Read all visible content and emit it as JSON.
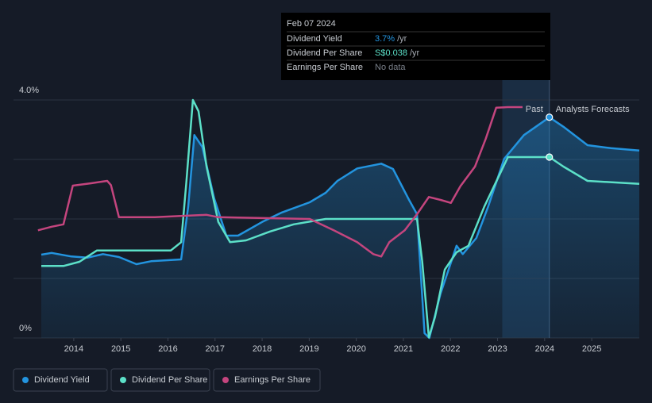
{
  "chart_data": {
    "type": "line",
    "xlim": [
      2012.72,
      2026.01
    ],
    "xticks": [
      2014,
      2015,
      2016,
      2017,
      2018,
      2019,
      2020,
      2021,
      2022,
      2023,
      2024,
      2025
    ],
    "ylim": [
      0,
      4
    ],
    "yticks": [
      {
        "value": 0,
        "label": "0%"
      },
      {
        "value": 4,
        "label": "4.0%"
      }
    ],
    "ygrid": [
      0,
      1,
      2,
      3,
      4
    ],
    "forecast_start": 2023.1,
    "cursor_x": 2024.1,
    "past_label": "Past",
    "forecast_label": "Analysts Forecasts",
    "series": [
      {
        "name": "Dividend Yield",
        "color": "#2394df",
        "area": true,
        "x": [
          2013.31,
          2013.53,
          2013.95,
          2014.29,
          2014.62,
          2014.96,
          2015.33,
          2015.64,
          2016.28,
          2016.43,
          2016.56,
          2016.73,
          2016.98,
          2017.24,
          2017.49,
          2018.0,
          2018.42,
          2019.01,
          2019.35,
          2019.6,
          2020.02,
          2020.53,
          2020.78,
          2021.12,
          2021.29,
          2021.45,
          2021.55,
          2021.79,
          2022.13,
          2022.26,
          2022.55,
          2022.8,
          2023.14,
          2023.56,
          2024.1,
          2024.4,
          2024.91,
          2025.41,
          2026.01
        ],
        "values": [
          1.4,
          1.43,
          1.37,
          1.35,
          1.41,
          1.36,
          1.24,
          1.29,
          1.32,
          2.21,
          3.41,
          3.21,
          2.35,
          1.72,
          1.72,
          1.95,
          2.11,
          2.28,
          2.44,
          2.64,
          2.85,
          2.93,
          2.84,
          2.32,
          2.08,
          0.08,
          0,
          0.75,
          1.55,
          1.41,
          1.68,
          2.21,
          3.01,
          3.41,
          3.71,
          3.55,
          3.24,
          3.19,
          3.15
        ]
      },
      {
        "name": "Dividend Per Share",
        "color": "#5ce0c8",
        "x": [
          2013.31,
          2013.78,
          2014.12,
          2014.49,
          2016.06,
          2016.28,
          2016.39,
          2016.53,
          2016.65,
          2016.82,
          2017.07,
          2017.32,
          2017.66,
          2018.17,
          2018.67,
          2019.35,
          2021.29,
          2021.4,
          2021.54,
          2021.67,
          2021.88,
          2022.13,
          2022.38,
          2022.72,
          2023.22,
          2024.1,
          2024.4,
          2024.91,
          2026.01
        ],
        "values": [
          1.21,
          1.21,
          1.28,
          1.47,
          1.47,
          1.61,
          2.61,
          4.0,
          3.81,
          2.88,
          1.95,
          1.61,
          1.64,
          1.79,
          1.91,
          2.0,
          2.0,
          1.28,
          0.01,
          0.35,
          1.15,
          1.44,
          1.55,
          2.21,
          3.04,
          3.04,
          2.88,
          2.64,
          2.59
        ]
      },
      {
        "name": "Earnings Per Share",
        "color": "#c4457e",
        "x": [
          2013.24,
          2013.53,
          2013.78,
          2013.98,
          2014.37,
          2014.71,
          2014.79,
          2014.96,
          2015.72,
          2016.82,
          2017.07,
          2019.01,
          2019.52,
          2020.02,
          2020.36,
          2020.53,
          2020.7,
          2021.03,
          2021.29,
          2021.54,
          2021.79,
          2022.01,
          2022.21,
          2022.52,
          2022.75,
          2022.97,
          2023.22,
          2023.53
        ],
        "values": [
          1.81,
          1.87,
          1.91,
          2.56,
          2.6,
          2.64,
          2.57,
          2.03,
          2.03,
          2.07,
          2.03,
          2.0,
          1.81,
          1.61,
          1.41,
          1.37,
          1.61,
          1.81,
          2.08,
          2.37,
          2.32,
          2.27,
          2.55,
          2.88,
          3.35,
          3.87,
          3.88,
          3.88
        ]
      }
    ]
  },
  "tooltip": {
    "date": "Feb 07 2024",
    "rows": [
      {
        "label": "Dividend Yield",
        "value": "3.7%",
        "unit": "/yr"
      },
      {
        "label": "Dividend Per Share",
        "value": "S$0.038",
        "unit": "/yr"
      },
      {
        "label": "Earnings Per Share",
        "value": "No data"
      }
    ]
  }
}
